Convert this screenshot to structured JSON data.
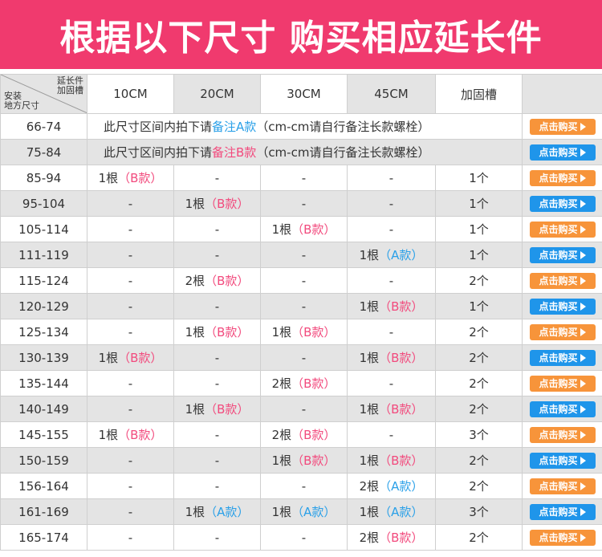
{
  "banner": {
    "title": "根据以下尺寸 购买相应延长件"
  },
  "colors": {
    "banner": "#f03a6e",
    "pink": "#f24a7d",
    "blue": "#2aa0e8",
    "btn_orange": "#f7943a",
    "btn_blue": "#1f95ea",
    "row_gray": "#e4e4e4"
  },
  "table": {
    "corner_top": [
      "延长件",
      "加固槽"
    ],
    "corner_bottom": [
      "安装",
      "地方尺寸"
    ],
    "headers": [
      "10CM",
      "20CM",
      "30CM",
      "45CM",
      "加固槽"
    ],
    "buy_label": "点击购买",
    "notes": [
      {
        "size": "66-74",
        "pre": "此尺寸区间内拍下请",
        "hl": "备注A款",
        "hl_color": "blue",
        "post": "（cm-cm请自行备注长款螺栓）",
        "btn": "orange"
      },
      {
        "size": "75-84",
        "pre": "此尺寸区间内拍下请",
        "hl": "备注B款",
        "hl_color": "pink",
        "post": "（cm-cm请自行备注长款螺栓）",
        "btn": "blue"
      }
    ],
    "rows": [
      {
        "size": "85-94",
        "cells": [
          [
            "1根",
            "（B款）",
            "pink"
          ],
          "-",
          "-",
          "-"
        ],
        "slot": "1个",
        "btn": "orange"
      },
      {
        "size": "95-104",
        "cells": [
          "-",
          [
            "1根",
            "（B款）",
            "pink"
          ],
          "-",
          "-"
        ],
        "slot": "1个",
        "btn": "blue"
      },
      {
        "size": "105-114",
        "cells": [
          "-",
          "-",
          [
            "1根",
            "（B款）",
            "pink"
          ],
          "-"
        ],
        "slot": "1个",
        "btn": "orange"
      },
      {
        "size": "111-119",
        "cells": [
          "-",
          "-",
          "-",
          [
            "1根",
            "（A款）",
            "blue"
          ]
        ],
        "slot": "1个",
        "btn": "blue"
      },
      {
        "size": "115-124",
        "cells": [
          "-",
          [
            "2根",
            "（B款）",
            "pink"
          ],
          "-",
          "-"
        ],
        "slot": "2个",
        "btn": "orange"
      },
      {
        "size": "120-129",
        "cells": [
          "-",
          "-",
          "-",
          [
            "1根",
            "（B款）",
            "pink"
          ]
        ],
        "slot": "1个",
        "btn": "blue"
      },
      {
        "size": "125-134",
        "cells": [
          "-",
          [
            "1根",
            "（B款）",
            "pink"
          ],
          [
            "1根",
            "（B款）",
            "pink"
          ],
          "-"
        ],
        "slot": "2个",
        "btn": "orange"
      },
      {
        "size": "130-139",
        "cells": [
          [
            "1根",
            "（B款）",
            "pink"
          ],
          "-",
          "-",
          [
            "1根",
            "（B款）",
            "pink"
          ]
        ],
        "slot": "2个",
        "btn": "blue"
      },
      {
        "size": "135-144",
        "cells": [
          "-",
          "-",
          [
            "2根",
            "（B款）",
            "pink"
          ],
          "-"
        ],
        "slot": "2个",
        "btn": "orange"
      },
      {
        "size": "140-149",
        "cells": [
          "-",
          [
            "1根",
            "（B款）",
            "pink"
          ],
          "-",
          [
            "1根",
            "（B款）",
            "pink"
          ]
        ],
        "slot": "2个",
        "btn": "blue"
      },
      {
        "size": "145-155",
        "cells": [
          [
            "1根",
            "（B款）",
            "pink"
          ],
          "-",
          [
            "2根",
            "（B款）",
            "pink"
          ],
          "-"
        ],
        "slot": "3个",
        "btn": "orange"
      },
      {
        "size": "150-159",
        "cells": [
          "-",
          "-",
          [
            "1根",
            "（B款）",
            "pink"
          ],
          [
            "1根",
            "（B款）",
            "pink"
          ]
        ],
        "slot": "2个",
        "btn": "blue"
      },
      {
        "size": "156-164",
        "cells": [
          "-",
          "-",
          "-",
          [
            "2根",
            "（A款）",
            "blue"
          ]
        ],
        "slot": "2个",
        "btn": "orange"
      },
      {
        "size": "161-169",
        "cells": [
          "-",
          [
            "1根",
            "（A款）",
            "blue"
          ],
          [
            "1根",
            "（A款）",
            "blue"
          ],
          [
            "1根",
            "（A款）",
            "blue"
          ]
        ],
        "slot": "3个",
        "btn": "blue"
      },
      {
        "size": "165-174",
        "cells": [
          "-",
          "-",
          "-",
          [
            "2根",
            "（B款）",
            "pink"
          ]
        ],
        "slot": "2个",
        "btn": "orange"
      }
    ]
  }
}
